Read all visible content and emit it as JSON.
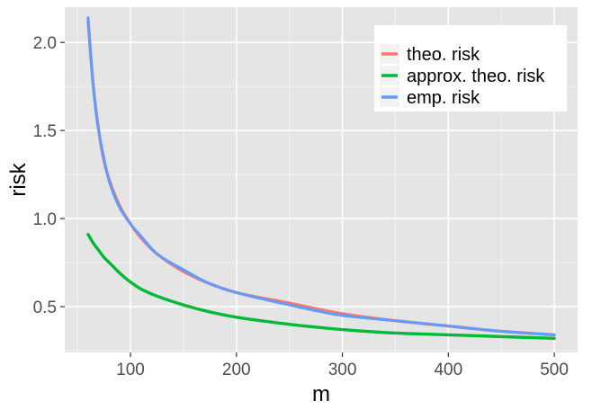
{
  "chart_data": {
    "type": "line",
    "xlabel": "m",
    "ylabel": "risk",
    "xlim": [
      38,
      522
    ],
    "ylim": [
      0.24,
      2.2
    ],
    "x_ticks": [
      100,
      200,
      300,
      400,
      500
    ],
    "x_tick_labels": [
      "100",
      "200",
      "300",
      "400",
      "500"
    ],
    "y_ticks": [
      0.5,
      1.0,
      1.5,
      2.0
    ],
    "y_tick_labels": [
      "0.5",
      "1.0",
      "1.5",
      "2.0"
    ],
    "grid": true,
    "legend_position": "top-right",
    "background": "#e5e5e5",
    "x": [
      60,
      65,
      70,
      75,
      80,
      90,
      100,
      110,
      125,
      150,
      175,
      200,
      250,
      300,
      350,
      400,
      450,
      500
    ],
    "series": [
      {
        "name": "theo. risk",
        "color": "#f8766d",
        "values": [
          2.12,
          1.75,
          1.5,
          1.33,
          1.22,
          1.07,
          0.97,
          0.89,
          0.8,
          0.7,
          0.63,
          0.58,
          0.52,
          0.46,
          0.42,
          0.39,
          0.36,
          0.34
        ]
      },
      {
        "name": "approx. theo. risk",
        "color": "#00ba38",
        "values": [
          0.91,
          0.86,
          0.82,
          0.78,
          0.75,
          0.69,
          0.64,
          0.6,
          0.56,
          0.51,
          0.47,
          0.44,
          0.4,
          0.37,
          0.35,
          0.34,
          0.33,
          0.32
        ]
      },
      {
        "name": "emp. risk",
        "color": "#619cff",
        "values": [
          2.14,
          1.74,
          1.5,
          1.34,
          1.21,
          1.06,
          0.97,
          0.9,
          0.8,
          0.71,
          0.63,
          0.58,
          0.51,
          0.45,
          0.42,
          0.39,
          0.36,
          0.34
        ]
      }
    ]
  }
}
